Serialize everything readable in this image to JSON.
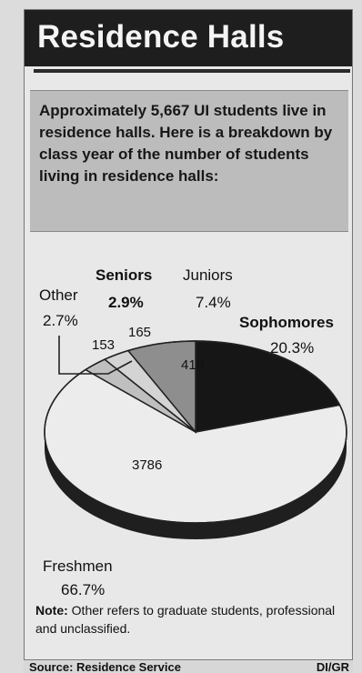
{
  "header": {
    "title": "Residence Halls"
  },
  "intro": {
    "text": "Approximately 5,667 UI students live in residence halls. Here is a breakdown by class year of the number of students living in residence halls:"
  },
  "chart_data": {
    "type": "pie",
    "title": "",
    "categories": [
      "Freshmen",
      "Sophomores",
      "Juniors",
      "Seniors",
      "Other"
    ],
    "values": [
      3786,
      1145,
      418,
      165,
      153
    ],
    "percentages": [
      "66.7%",
      "20.3%",
      "7.4%",
      "2.9%",
      "2.7%"
    ],
    "slice_value_labels": [
      "3786",
      "",
      "418",
      "165",
      "153"
    ],
    "colors": [
      "#ececec",
      "#161616",
      "#8e8e8e",
      "#d4d4d4",
      "#bfbfbf"
    ]
  },
  "labels": {
    "freshmen": {
      "name": "Freshmen",
      "pct": "66.7%"
    },
    "sophomores": {
      "name": "Sophomores",
      "pct": "20.3%"
    },
    "juniors": {
      "name": "Juniors",
      "pct": "7.4%"
    },
    "seniors": {
      "name": "Seniors",
      "pct": "2.9%"
    },
    "other": {
      "name": "Other",
      "pct": "2.7%"
    }
  },
  "note": {
    "label": "Note:",
    "text": "Other refers to graduate students, professional and unclassified."
  },
  "footer": {
    "source": "Source: Residence Service",
    "credit": "DI/GR"
  }
}
